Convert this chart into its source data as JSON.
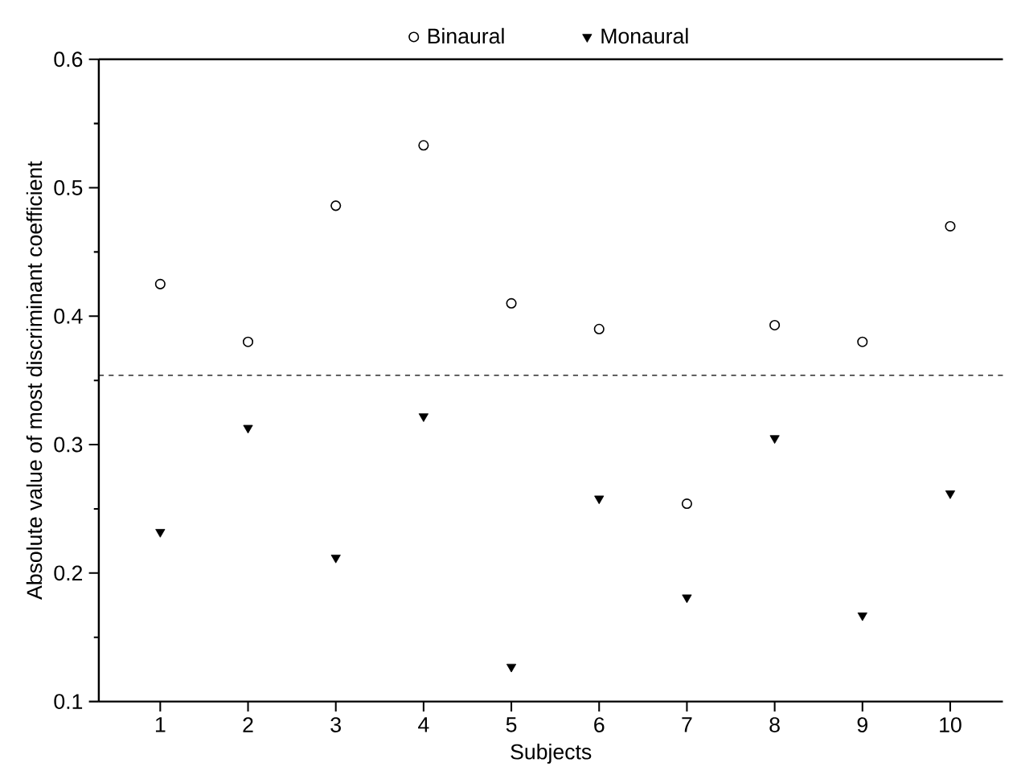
{
  "chart_data": {
    "type": "scatter",
    "xlabel": "Subjects",
    "ylabel": "Absolute value of most discriminant coefficient",
    "x": [
      1,
      2,
      3,
      4,
      5,
      6,
      7,
      8,
      9,
      10
    ],
    "series": [
      {
        "name": "Binaural",
        "color": "#000000",
        "marker": "circle",
        "values": [
          0.425,
          0.38,
          0.486,
          0.533,
          0.41,
          0.39,
          0.254,
          0.393,
          0.38,
          0.47
        ]
      },
      {
        "name": "Monaural",
        "color": "#000000",
        "marker": "triangle",
        "values": [
          0.232,
          0.313,
          0.212,
          0.322,
          0.127,
          0.258,
          0.181,
          0.305,
          0.167,
          0.262
        ]
      }
    ],
    "xlim": [
      0.3,
      10.6
    ],
    "xticks": [
      1,
      2,
      3,
      4,
      5,
      6,
      7,
      8,
      9,
      10
    ],
    "ylim": [
      0.1,
      0.6
    ],
    "yticks": [
      0.1,
      0.2,
      0.3,
      0.4,
      0.5,
      0.6
    ],
    "ref_lines": [
      {
        "axis": "y",
        "value": 0.354,
        "line_style": "dashed",
        "color": "#000000"
      }
    ],
    "legend": "top",
    "grid": false
  }
}
